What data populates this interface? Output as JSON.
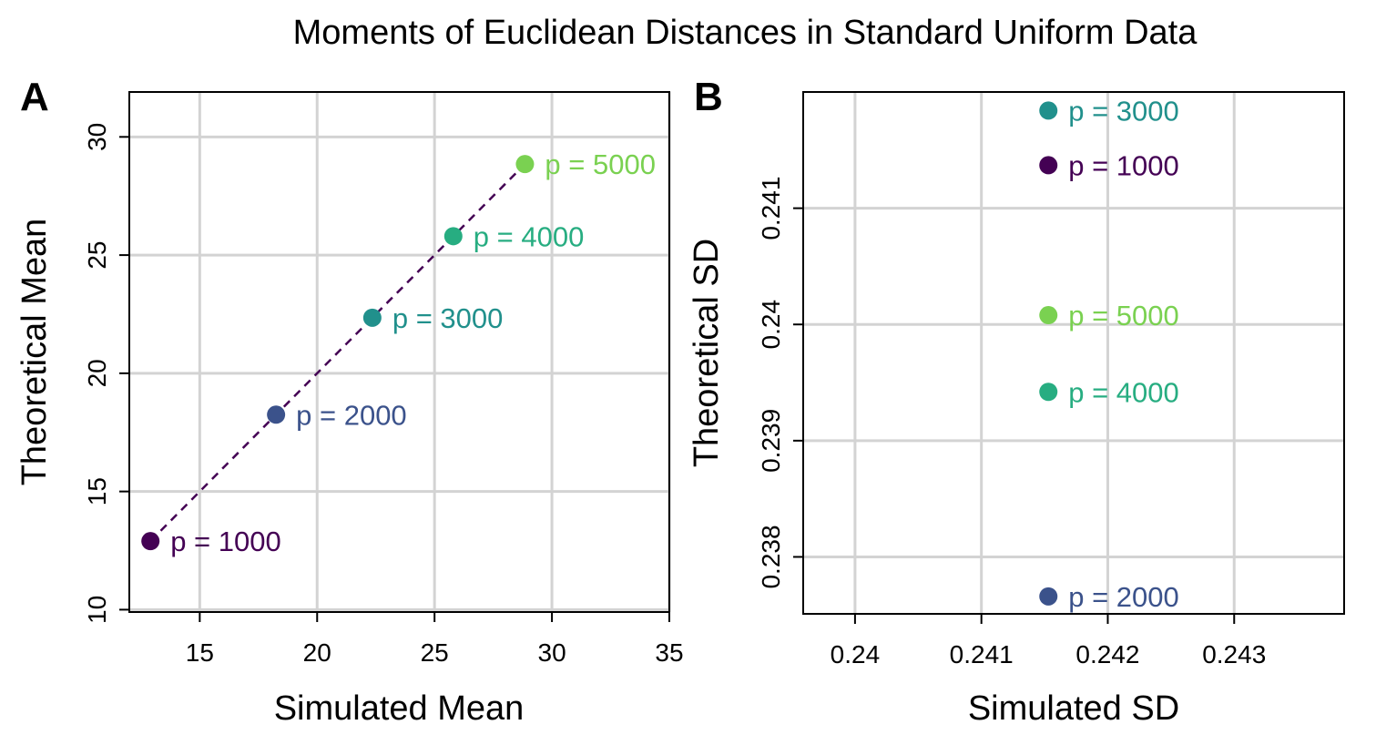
{
  "title": "Moments of Euclidean Distances in Standard Uniform Data",
  "colors": {
    "p1000": "#440154",
    "p2000": "#3b528b",
    "p3000": "#21908c",
    "p4000": "#27ad81",
    "p5000": "#7ad151",
    "line": "#440154",
    "grid": "#d3d3d3",
    "frame": "#000000"
  },
  "chart_data": [
    {
      "panel": "A",
      "type": "scatter",
      "xlabel": "Simulated Mean",
      "ylabel": "Theoretical Mean",
      "xlim": [
        12.0,
        35.0
      ],
      "ylim": [
        9.9,
        31.9
      ],
      "xticks": [
        15,
        20,
        25,
        30,
        35
      ],
      "xtick_labels": [
        "15",
        "20",
        "25",
        "30",
        "35"
      ],
      "yticks": [
        10,
        15,
        20,
        25,
        30
      ],
      "ytick_labels": [
        "10",
        "15",
        "20",
        "25",
        "30"
      ],
      "grid": true,
      "reference_line": {
        "style": "dashed",
        "from": [
          12.9,
          12.9
        ],
        "to": [
          28.8,
          28.8
        ]
      },
      "points": [
        {
          "label": "p = 1000",
          "x": 12.9,
          "y": 12.9,
          "color_key": "p1000"
        },
        {
          "label": "p = 2000",
          "x": 18.25,
          "y": 18.25,
          "color_key": "p2000"
        },
        {
          "label": "p = 3000",
          "x": 22.35,
          "y": 22.35,
          "color_key": "p3000"
        },
        {
          "label": "p = 4000",
          "x": 25.8,
          "y": 25.8,
          "color_key": "p4000"
        },
        {
          "label": "p = 5000",
          "x": 28.85,
          "y": 28.85,
          "color_key": "p5000"
        }
      ]
    },
    {
      "panel": "B",
      "type": "scatter",
      "xlabel": "Simulated SD",
      "ylabel": "Theoretical SD",
      "xlim": [
        0.23959,
        0.24387
      ],
      "ylim": [
        0.23751,
        0.242
      ],
      "xticks": [
        0.24,
        0.241,
        0.242,
        0.243
      ],
      "xtick_labels": [
        "0.24",
        "0.241",
        "0.242",
        "0.243"
      ],
      "yticks": [
        0.238,
        0.239,
        0.24,
        0.241
      ],
      "ytick_labels": [
        "0.238",
        "0.239",
        "0.24",
        "0.241"
      ],
      "grid": true,
      "points": [
        {
          "label": "p = 3000",
          "x": 0.24153,
          "y": 0.24184,
          "color_key": "p3000"
        },
        {
          "label": "p = 1000",
          "x": 0.24153,
          "y": 0.24137,
          "color_key": "p1000"
        },
        {
          "label": "p = 5000",
          "x": 0.24153,
          "y": 0.24008,
          "color_key": "p5000"
        },
        {
          "label": "p = 4000",
          "x": 0.24153,
          "y": 0.23942,
          "color_key": "p4000"
        },
        {
          "label": "p = 2000",
          "x": 0.24153,
          "y": 0.23766,
          "color_key": "p2000"
        }
      ]
    }
  ]
}
